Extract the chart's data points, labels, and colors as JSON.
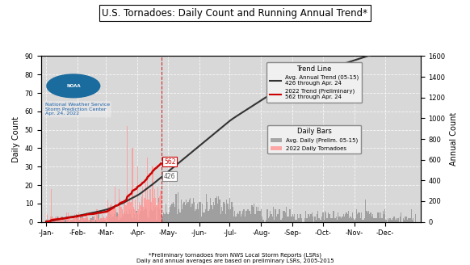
{
  "title": "U.S. Tornadoes: Daily Count and Running Annual Trend*",
  "xlabel_note1": "*Preliminary tornadoes from NWS Local Storm Reports (LSRs)",
  "xlabel_note2": "Daily and annual averages are based on preliminary LSRs, 2005-2015",
  "ylabel_left": "Daily Count",
  "ylabel_right": "Annual Count",
  "ylim_left": [
    0,
    90
  ],
  "ylim_right": [
    0,
    1600
  ],
  "yticks_left": [
    0,
    10,
    20,
    30,
    40,
    50,
    60,
    70,
    80,
    90
  ],
  "yticks_right": [
    0,
    200,
    400,
    600,
    800,
    1000,
    1200,
    1400,
    1600
  ],
  "month_labels": [
    "-Jan-",
    "-Feb-",
    "-Mar-",
    "-Apr-",
    "-May-",
    "-Jun-",
    "-Jul-",
    "-Aug-",
    "-Sep-",
    "-Oct-",
    "-Nov-",
    "-Dec-"
  ],
  "bg_color": "#d8d8d8",
  "grid_color": "white",
  "annotation_avg": "426",
  "annotation_2022": "562",
  "legend_trend_title": "Trend Line",
  "legend_bar_title": "Daily Bars",
  "avg_trend_label": "Avg. Annual Trend (05-15)\n426 through Apr. 24",
  "trend2022_label": "2022 Trend (Preliminary)\n562 through Apr. 24",
  "avg_daily_label": "Avg. Daily (Prelim. 05-15)",
  "daily2022_label": "2022 Daily Tornadoes",
  "avg_trend_color": "#333333",
  "trend2022_color": "#cc0000",
  "avg_bar_color": "#888888",
  "daily2022_color": "#ff9999",
  "noaa_text_color": "#1a5fa8",
  "noaa_label1": "National Weather Service",
  "noaa_label2": "Storm Prediction Center",
  "noaa_label3": "Apr. 24, 2022",
  "vertical_line_color": "#cc0000",
  "cutoff_day": 114,
  "total_days": 365
}
